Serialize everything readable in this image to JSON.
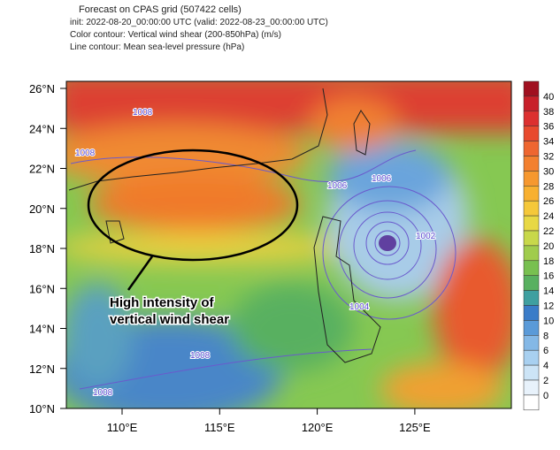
{
  "header": {
    "lines": [
      "Forecast on CPAS grid (507422 cells)",
      "init: 2022-08-20_00:00:00 UTC   (valid: 2022-08-23_00:00:00 UTC)",
      "Color contour:   Vertical wind shear (200-850hPa) (m/s)",
      "Line contour:   Mean sea-level pressure (hPa)"
    ]
  },
  "map": {
    "lat_labels": [
      "26°N",
      "24°N",
      "22°N",
      "20°N",
      "18°N",
      "16°N",
      "14°N",
      "12°N",
      "10°N"
    ],
    "lon_labels": [
      "110°E",
      "115°E",
      "120°E",
      "125°E"
    ],
    "contour_labels": [
      "1008",
      "1006",
      "1006",
      "1004",
      "1002",
      "1008",
      "1008",
      "1008"
    ],
    "annotation": [
      "High intensity of",
      "vertical wind shear"
    ]
  },
  "colorbar": {
    "levels": [
      40,
      38,
      36,
      34,
      32,
      30,
      28,
      26,
      24,
      22,
      20,
      18,
      16,
      14,
      12,
      10,
      8,
      6,
      4,
      2,
      0
    ],
    "colors": [
      "#a01020",
      "#c8202a",
      "#dc3030",
      "#e84a2e",
      "#ee6630",
      "#f3802f",
      "#f6982f",
      "#f8b030",
      "#f5c83a",
      "#e8d844",
      "#c8d84a",
      "#a0cc4c",
      "#78c050",
      "#58b060",
      "#3f9fa0",
      "#3a7cc8",
      "#5a9ad8",
      "#84b8e6",
      "#a8d0f0",
      "#cce4f6",
      "#e8f2fb",
      "#ffffff"
    ]
  }
}
